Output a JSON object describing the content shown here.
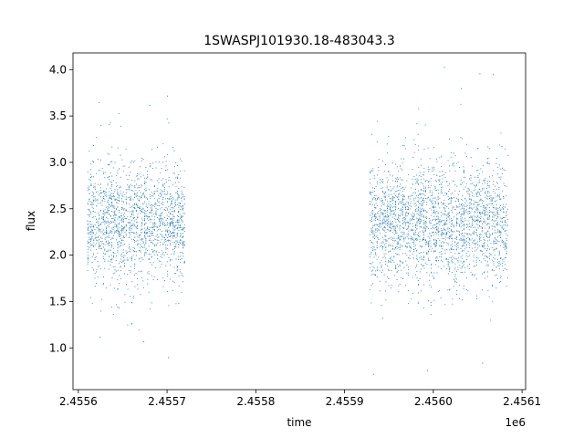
{
  "chart_data": {
    "type": "scatter",
    "title": "1SWASPJ101930.18-483043.3",
    "xlabel": "time",
    "ylabel": "flux",
    "x_offset_label": "1e6",
    "xlim": [
      2455594,
      2456104
    ],
    "ylim": [
      0.55,
      4.18
    ],
    "x_ticks": [
      2455600,
      2455700,
      2455800,
      2455900,
      2456000,
      2456100
    ],
    "x_tick_labels": [
      "2.4556",
      "2.4557",
      "2.4558",
      "2.4559",
      "2.4560",
      "2.4561"
    ],
    "y_ticks": [
      1.0,
      1.5,
      2.0,
      2.5,
      3.0,
      3.5,
      4.0
    ],
    "y_tick_labels": [
      "1.0",
      "1.5",
      "2.0",
      "2.5",
      "3.0",
      "3.5",
      "4.0"
    ],
    "grid": false,
    "marker_color": "#1f77b4",
    "segments": [
      {
        "x_start": 2455610,
        "x_end": 2455720,
        "flux_center": 2.35,
        "flux_spread": 0.32
      },
      {
        "x_start": 2455928,
        "x_end": 2456084,
        "flux_center": 2.35,
        "flux_spread": 0.32
      }
    ],
    "notable_points": [
      {
        "x": 2455700,
        "y": 3.72
      },
      {
        "x": 2456012,
        "y": 4.03
      },
      {
        "x": 2456052,
        "y": 3.96
      },
      {
        "x": 2456067,
        "y": 3.95
      },
      {
        "x": 2456031,
        "y": 3.8
      },
      {
        "x": 2455680,
        "y": 3.62
      },
      {
        "x": 2455623,
        "y": 3.65
      },
      {
        "x": 2455932,
        "y": 0.72
      },
      {
        "x": 2455993,
        "y": 0.76
      },
      {
        "x": 2456055,
        "y": 0.84
      },
      {
        "x": 2455701,
        "y": 0.9
      },
      {
        "x": 2455624,
        "y": 1.12
      },
      {
        "x": 2455673,
        "y": 1.07
      }
    ]
  }
}
